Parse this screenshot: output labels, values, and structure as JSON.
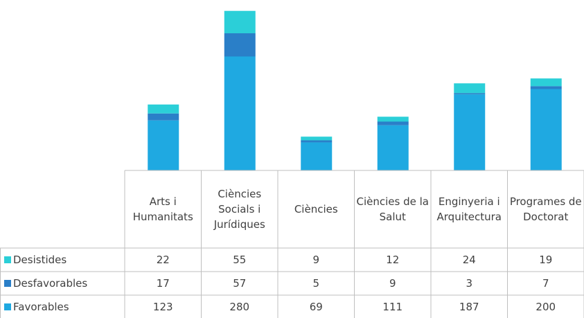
{
  "chart_data": {
    "type": "bar",
    "stacked": true,
    "categories": [
      "Arts i Humanitats",
      "Ciències Socials i Jurídiques",
      "Ciències",
      "Ciències de la Salut",
      "Enginyeria i Arquitectura",
      "Programes de Doctorat"
    ],
    "series": [
      {
        "name": "Desistides",
        "color": "#2bcfd8",
        "values": [
          22,
          55,
          9,
          12,
          24,
          19
        ]
      },
      {
        "name": "Desfavorables",
        "color": "#2a7fc8",
        "values": [
          17,
          57,
          5,
          9,
          3,
          7
        ]
      },
      {
        "name": "Favorables",
        "color": "#1fa9e1",
        "values": [
          123,
          280,
          69,
          111,
          187,
          200
        ]
      }
    ],
    "ylim": [
      0,
      400
    ]
  }
}
